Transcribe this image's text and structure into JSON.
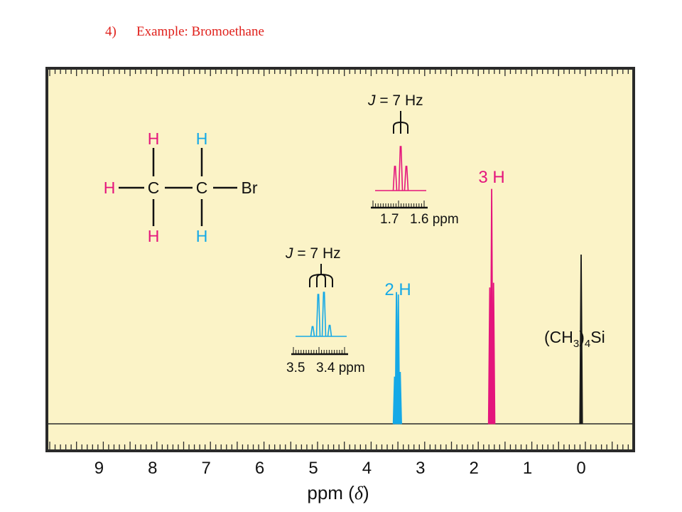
{
  "slide": {
    "number": "4)",
    "title": "Example: Bromoethane"
  },
  "colors": {
    "panel_bg": "#fbf3c7",
    "frame": "#2a2a2a",
    "ch3": "#e4157c",
    "ch2": "#15a9e6",
    "tms": "#1a1a1a",
    "title": "#e0201b"
  },
  "structure": {
    "atoms": {
      "h_left": "H",
      "c1": "C",
      "c2": "C",
      "br": "Br",
      "h_c1_top": "H",
      "h_c1_bottom": "H",
      "h_c2_top": "H",
      "h_c2_bottom": "H"
    }
  },
  "chart_data": {
    "type": "line",
    "xlabel_main": "ppm (",
    "xlabel_symbol": "δ",
    "xlabel_close": ")",
    "xlim": [
      10,
      -1
    ],
    "x_ticks": [
      9,
      8,
      7,
      6,
      5,
      4,
      3,
      2,
      1,
      0
    ],
    "peaks": [
      {
        "group": "CH3",
        "integration": "3 H",
        "multiplicity": "triplet",
        "center_ppm": 1.67,
        "J_Hz": 7,
        "relative_heights": [
          0.6,
          1.0,
          0.58
        ],
        "color": "#e4157c"
      },
      {
        "group": "CH2",
        "integration": "2 H",
        "multiplicity": "quartet",
        "center_ppm": 3.43,
        "J_Hz": 7,
        "relative_heights": [
          0.22,
          0.55,
          0.56,
          0.2
        ],
        "color": "#15a9e6"
      },
      {
        "group": "TMS",
        "label_main": "(CH",
        "label_sub": "3",
        "label_paren": ")",
        "label_sub2": "4",
        "label_end": "Si",
        "center_ppm": 0.0,
        "relative_heights": [
          0.72
        ],
        "color": "#1a1a1a"
      }
    ],
    "insets": [
      {
        "group": "CH3",
        "J_label_italic": "J",
        "J_label_rest": " = 7 Hz",
        "tick_labels": [
          "1.7",
          "1.6 ppm"
        ],
        "color": "#e4157c"
      },
      {
        "group": "CH2",
        "J_label_italic": "J",
        "J_label_rest": " = 7 Hz",
        "tick_labels": [
          "3.5",
          "3.4 ppm"
        ],
        "color": "#15a9e6"
      }
    ]
  }
}
